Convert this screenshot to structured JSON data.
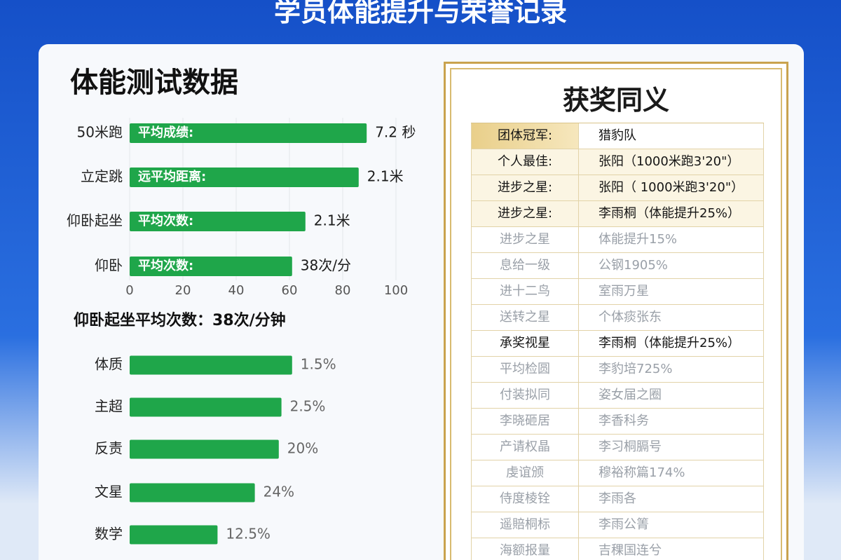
{
  "header": {
    "title": "学员体能提升与荣誉记录",
    "panel_title": "体能测试数据"
  },
  "chart_data": [
    {
      "type": "bar",
      "orientation": "horizontal",
      "categories": [
        "50米跑",
        "立定跳",
        "仰卧起坐",
        "仰卧"
      ],
      "values": [
        89,
        86,
        66,
        61
      ],
      "inner_labels": [
        "平均成绩:",
        "远平均距离:",
        "平均次数:",
        "平均次数:"
      ],
      "annotations": [
        "7.2 秒",
        "2.1米",
        "2.1米",
        "38次/分"
      ],
      "color": "#1fa64a",
      "xlim": [
        0,
        100
      ],
      "xticks": [
        0,
        20,
        40,
        60,
        80,
        100
      ],
      "grid": true
    },
    {
      "type": "bar",
      "orientation": "horizontal",
      "title": "仰卧起坐平均次数：38次/分钟",
      "categories": [
        "体质",
        "主超",
        "反责",
        "文星",
        "数学"
      ],
      "values": [
        61,
        57,
        56,
        47,
        33
      ],
      "annotations": [
        "1.5%",
        "2.5%",
        "20%",
        "24%",
        "12.5%"
      ],
      "color": "#1fa64a",
      "xlim": [
        0,
        100
      ]
    }
  ],
  "awards": {
    "title": "获奖同义",
    "rows": [
      [
        "团体冠军:",
        "猎豹队"
      ],
      [
        "个人最佳:",
        "张阳（1000米跑3'20\"）"
      ],
      [
        "进步之星:",
        "张阳（ 1000米跑3'20\"）"
      ],
      [
        "进步之星:",
        "李雨桐（体能提升25%）"
      ],
      [
        "进步之星",
        "体能提升15%"
      ],
      [
        "息给一级",
        "公钢1905%"
      ],
      [
        "进十二鸟",
        "室雨万星"
      ],
      [
        "送转之星",
        "个体痰张东"
      ],
      [
        "承奖视星",
        "李雨桐（体能提升25%）"
      ],
      [
        "平均检圆",
        "李豹培725%"
      ],
      [
        "付装拟同",
        "姿女届之圈"
      ],
      [
        "李晓砸居",
        "李香科务"
      ],
      [
        "产请权晶",
        "李习桐膈号"
      ],
      [
        "虔谊颁",
        "穆裕称篇174%"
      ],
      [
        "侍度棱铨",
        "李雨各"
      ],
      [
        "遥賠桐标",
        "李雨公箐"
      ],
      [
        "海额报量",
        "吉稞国连兮"
      ]
    ]
  }
}
